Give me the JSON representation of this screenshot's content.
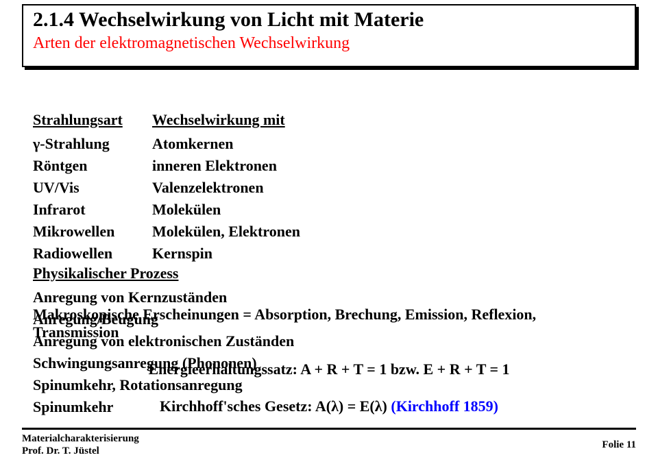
{
  "title": {
    "main": "2.1.4 Wechselwirkung von Licht mit Materie",
    "sub": "Arten der elektromagnetischen Wechselwirkung"
  },
  "table": {
    "headers": [
      "Strahlungsart",
      "Wechselwirkung mit",
      "Physikalischer Prozess"
    ],
    "rows": [
      [
        "γ-Strahlung",
        "Atomkernen",
        "Anregung von Kernzuständen"
      ],
      [
        "Röntgen",
        "inneren Elektronen",
        "Anregung/Beugung"
      ],
      [
        "UV/Vis",
        "Valenzelektronen",
        "Anregung von elektronischen Zuständen"
      ],
      [
        "Infrarot",
        "Molekülen",
        "Schwingungsanregung (Phononen)"
      ],
      [
        "Mikrowellen",
        "Molekülen, Elektronen",
        "Spinumkehr, Rotationsanregung"
      ],
      [
        "Radiowellen",
        "Kernspin",
        "Spinumkehr"
      ]
    ]
  },
  "macro": "Makroskopische Erscheinungen = Absorption, Brechung, Emission, Reflexion, Transmission",
  "energy": "Energieerhaltungssatz: A + R + T = 1  bzw.  E + R + T = 1",
  "kirchhoff": {
    "law": "Kirchhoff'sches Gesetz: A(λ) = E(λ) ",
    "ref": "(Kirchhoff 1859)"
  },
  "footer": {
    "line1": "Materialcharakterisierung",
    "line2": "Prof. Dr. T. Jüstel",
    "slide": "Folie 11"
  },
  "colors": {
    "subtitle": "#ff0000",
    "reference": "#0000ff",
    "text": "#000000",
    "background": "#ffffff"
  }
}
